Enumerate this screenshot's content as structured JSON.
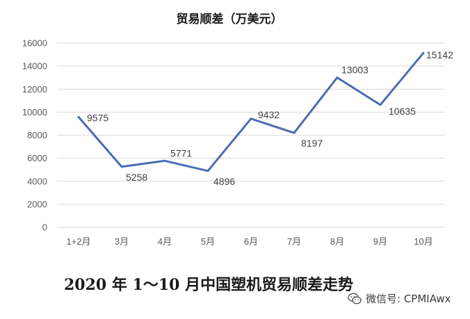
{
  "chart_data": {
    "type": "line",
    "title": "贸易顺差（万美元）",
    "xlabel": "",
    "ylabel": "",
    "categories": [
      "1+2月",
      "3月",
      "4月",
      "5月",
      "6月",
      "7月",
      "8月",
      "9月",
      "10月"
    ],
    "series": [
      {
        "values": [
          9575,
          5258,
          5771,
          4896,
          9432,
          8197,
          13003,
          10635,
          15142
        ]
      }
    ],
    "data_labels": [
      "9575",
      "5258",
      "5771",
      "4896",
      "9432",
      "8197",
      "13003",
      "10635",
      "15142"
    ],
    "y_ticks": [
      "0",
      "2000",
      "4000",
      "6000",
      "8000",
      "10000",
      "12000",
      "14000",
      "16000"
    ],
    "ylim": [
      0,
      16000
    ],
    "grid": true,
    "legend": "none",
    "line_color": "#4a6cb5"
  },
  "caption": "2020 年 1～10 月中国塑机贸易顺差走势",
  "watermark": {
    "icon": "wechat-icon",
    "text": "微信号: CPMIAwx"
  }
}
